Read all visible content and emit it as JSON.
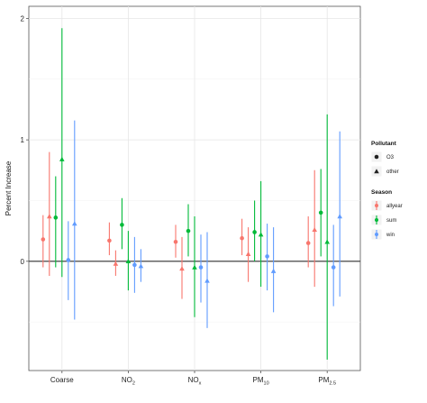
{
  "chart_data": {
    "type": "errorbar",
    "title": "",
    "xlabel": "",
    "ylabel": "Percent Increase",
    "ylim": [
      -0.9,
      2.1
    ],
    "yticks": [
      0,
      1,
      2
    ],
    "ytick_labels": [
      "0",
      "1",
      "2"
    ],
    "reference_line": 0,
    "grid": true,
    "legend_position": "right",
    "categories": [
      {
        "base": "Coarse",
        "sub": ""
      },
      {
        "base": "NO",
        "sub": "2"
      },
      {
        "base": "NO",
        "sub": "x"
      },
      {
        "base": "PM",
        "sub": "10"
      },
      {
        "base": "PM",
        "sub": "2.5"
      }
    ],
    "legend": {
      "pollutant": {
        "title": "Pollutant",
        "items": [
          {
            "label": "O3",
            "shape": "circle"
          },
          {
            "label": "other",
            "shape": "triangle"
          }
        ]
      },
      "season": {
        "title": "Season",
        "items": [
          {
            "label": "allyear",
            "color": "#F8766D"
          },
          {
            "label": "sum",
            "color": "#00BA38"
          },
          {
            "label": "win",
            "color": "#619CFF"
          }
        ]
      }
    },
    "series": [
      {
        "season": "allyear",
        "pollutant": "O3",
        "color": "#F8766D",
        "shape": "circle",
        "estimate": [
          0.18,
          0.17,
          0.16,
          0.19,
          0.15
        ],
        "lower": [
          -0.05,
          0.05,
          0.03,
          0.05,
          -0.05
        ],
        "upper": [
          0.38,
          0.32,
          0.3,
          0.35,
          0.37
        ]
      },
      {
        "season": "allyear",
        "pollutant": "other",
        "color": "#F8766D",
        "shape": "triangle",
        "estimate": [
          0.37,
          -0.02,
          -0.06,
          0.06,
          0.26
        ],
        "lower": [
          -0.12,
          -0.12,
          -0.31,
          -0.17,
          -0.21
        ],
        "upper": [
          0.9,
          0.09,
          0.2,
          0.28,
          0.75
        ]
      },
      {
        "season": "sum",
        "pollutant": "O3",
        "color": "#00BA38",
        "shape": "circle",
        "estimate": [
          0.36,
          0.3,
          0.25,
          0.24,
          0.4
        ],
        "lower": [
          -0.05,
          0.1,
          0.04,
          0.0,
          0.04
        ],
        "upper": [
          0.7,
          0.52,
          0.47,
          0.5,
          0.76
        ]
      },
      {
        "season": "sum",
        "pollutant": "other",
        "color": "#00BA38",
        "shape": "triangle",
        "estimate": [
          0.84,
          0.0,
          -0.05,
          0.22,
          0.16
        ],
        "lower": [
          -0.13,
          -0.24,
          -0.46,
          -0.21,
          -0.81
        ],
        "upper": [
          1.92,
          0.25,
          0.37,
          0.66,
          1.21
        ]
      },
      {
        "season": "win",
        "pollutant": "O3",
        "color": "#619CFF",
        "shape": "circle",
        "estimate": [
          0.01,
          -0.03,
          -0.05,
          0.04,
          -0.05
        ],
        "lower": [
          -0.32,
          -0.26,
          -0.34,
          -0.24,
          -0.37
        ],
        "upper": [
          0.33,
          0.2,
          0.22,
          0.31,
          0.3
        ]
      },
      {
        "season": "win",
        "pollutant": "other",
        "color": "#619CFF",
        "shape": "triangle",
        "estimate": [
          0.31,
          -0.04,
          -0.16,
          -0.08,
          0.37
        ],
        "lower": [
          -0.48,
          -0.17,
          -0.55,
          -0.42,
          -0.29
        ],
        "upper": [
          1.16,
          0.1,
          0.24,
          0.28,
          1.07
        ]
      }
    ]
  }
}
